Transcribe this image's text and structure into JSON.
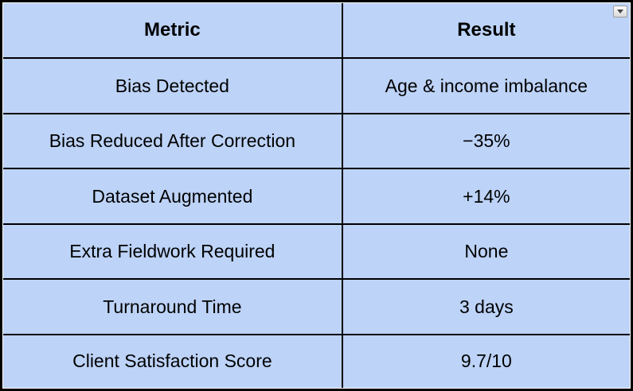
{
  "table": {
    "header": [
      "Metric",
      "Result"
    ],
    "rows": [
      {
        "metric": "Bias Detected",
        "result": "Age & income imbalance"
      },
      {
        "metric": "Bias Reduced After Correction",
        "result": "−35%"
      },
      {
        "metric": "Dataset Augmented",
        "result": "+14%"
      },
      {
        "metric": "Extra Fieldwork Required",
        "result": "None"
      },
      {
        "metric": "Turnaround Time",
        "result": "3 days"
      },
      {
        "metric": "Client Satisfaction Score",
        "result": "9.7/10"
      }
    ]
  },
  "controls": {
    "table_menu_icon": "chevron-down"
  },
  "colors": {
    "cell_background": "#bdd3f8",
    "border": "#000000",
    "text": "#000000",
    "menu_button_border": "#9e9e9e"
  }
}
